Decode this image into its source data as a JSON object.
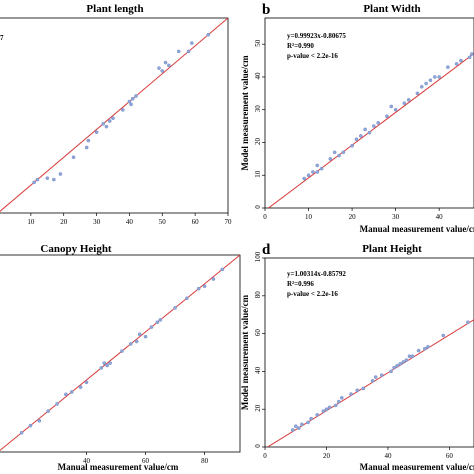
{
  "chart_data": [
    {
      "type": "scatter",
      "panel_letter": "",
      "title": "Plant length",
      "xlabel": "",
      "ylabel": "",
      "xlim": [
        0,
        70
      ],
      "ylim": [
        0,
        70
      ],
      "xticks": [
        "10",
        "20",
        "30",
        "40",
        "50",
        "60",
        "70"
      ],
      "yticks": [],
      "annotations": [
        "7"
      ],
      "fit_line": {
        "slope": 1.0,
        "intercept": 0.0
      },
      "points": [
        {
          "x": 11,
          "y": 11
        },
        {
          "x": 12,
          "y": 12
        },
        {
          "x": 15,
          "y": 12.5
        },
        {
          "x": 17,
          "y": 12
        },
        {
          "x": 19,
          "y": 14
        },
        {
          "x": 23,
          "y": 20
        },
        {
          "x": 27,
          "y": 23.5
        },
        {
          "x": 27.5,
          "y": 26
        },
        {
          "x": 30,
          "y": 29
        },
        {
          "x": 32,
          "y": 32
        },
        {
          "x": 33,
          "y": 31
        },
        {
          "x": 34,
          "y": 33
        },
        {
          "x": 35,
          "y": 34
        },
        {
          "x": 38,
          "y": 37
        },
        {
          "x": 40,
          "y": 40
        },
        {
          "x": 40.5,
          "y": 39
        },
        {
          "x": 41,
          "y": 41
        },
        {
          "x": 42,
          "y": 42
        },
        {
          "x": 49,
          "y": 52
        },
        {
          "x": 50,
          "y": 51
        },
        {
          "x": 51,
          "y": 54
        },
        {
          "x": 52,
          "y": 53
        },
        {
          "x": 55,
          "y": 58
        },
        {
          "x": 58,
          "y": 58
        },
        {
          "x": 59,
          "y": 61
        },
        {
          "x": 64,
          "y": 64
        }
      ],
      "colors": {
        "points": "#8fa6d8",
        "line": "#d83a3a"
      }
    },
    {
      "type": "scatter",
      "panel_letter": "b",
      "title": "Plant Width",
      "xlabel": "Manual measurement value/cm",
      "ylabel": "Model measurement value/cm",
      "xlim": [
        0,
        48
      ],
      "ylim": [
        0,
        58
      ],
      "xticks": [
        "0",
        "10",
        "20",
        "30",
        "40"
      ],
      "yticks": [
        "0",
        "10",
        "20",
        "30",
        "40",
        "50"
      ],
      "annotations": [
        "y=0.99923x-0.80675",
        "R²=0.990",
        "p-value < 2.2e-16"
      ],
      "fit_line": {
        "slope": 0.99923,
        "intercept": -0.80675
      },
      "points": [
        {
          "x": 9,
          "y": 9
        },
        {
          "x": 10,
          "y": 10
        },
        {
          "x": 11,
          "y": 11
        },
        {
          "x": 12,
          "y": 11
        },
        {
          "x": 12,
          "y": 13
        },
        {
          "x": 13,
          "y": 12
        },
        {
          "x": 15,
          "y": 15
        },
        {
          "x": 16,
          "y": 17
        },
        {
          "x": 17,
          "y": 16
        },
        {
          "x": 18,
          "y": 17
        },
        {
          "x": 20,
          "y": 19
        },
        {
          "x": 21,
          "y": 21
        },
        {
          "x": 22,
          "y": 22
        },
        {
          "x": 23,
          "y": 24
        },
        {
          "x": 24,
          "y": 23
        },
        {
          "x": 25,
          "y": 25
        },
        {
          "x": 26,
          "y": 26
        },
        {
          "x": 28,
          "y": 28
        },
        {
          "x": 29,
          "y": 31
        },
        {
          "x": 30,
          "y": 30
        },
        {
          "x": 32,
          "y": 32
        },
        {
          "x": 33,
          "y": 33
        },
        {
          "x": 35,
          "y": 35
        },
        {
          "x": 36,
          "y": 37
        },
        {
          "x": 37,
          "y": 38
        },
        {
          "x": 38,
          "y": 39
        },
        {
          "x": 39,
          "y": 40
        },
        {
          "x": 40,
          "y": 40
        },
        {
          "x": 42,
          "y": 43
        },
        {
          "x": 44,
          "y": 44
        },
        {
          "x": 45,
          "y": 45
        },
        {
          "x": 47,
          "y": 46
        },
        {
          "x": 47.5,
          "y": 47
        }
      ],
      "colors": {
        "points": "#8fa6d8",
        "line": "#d83a3a"
      }
    },
    {
      "type": "scatter",
      "panel_letter": "",
      "title": "Canopy Height",
      "xlabel": "Manual measurement value/cm",
      "ylabel": "",
      "xlim": [
        10,
        92
      ],
      "ylim": [
        10,
        92
      ],
      "xticks": [
        "40",
        "60",
        "80"
      ],
      "yticks": [],
      "annotations": [],
      "fit_line": {
        "slope": 1.0,
        "intercept": 0.0
      },
      "points": [
        {
          "x": 18,
          "y": 18
        },
        {
          "x": 21,
          "y": 21
        },
        {
          "x": 24,
          "y": 23
        },
        {
          "x": 27,
          "y": 27
        },
        {
          "x": 30,
          "y": 30
        },
        {
          "x": 33,
          "y": 34
        },
        {
          "x": 35,
          "y": 35
        },
        {
          "x": 38,
          "y": 37
        },
        {
          "x": 40,
          "y": 39
        },
        {
          "x": 45,
          "y": 45
        },
        {
          "x": 46,
          "y": 47
        },
        {
          "x": 47,
          "y": 46
        },
        {
          "x": 48,
          "y": 47
        },
        {
          "x": 52,
          "y": 52
        },
        {
          "x": 55,
          "y": 55
        },
        {
          "x": 57,
          "y": 56
        },
        {
          "x": 58,
          "y": 59
        },
        {
          "x": 60,
          "y": 58
        },
        {
          "x": 62,
          "y": 62
        },
        {
          "x": 64,
          "y": 64
        },
        {
          "x": 65,
          "y": 65
        },
        {
          "x": 70,
          "y": 70
        },
        {
          "x": 74,
          "y": 74
        },
        {
          "x": 78,
          "y": 78
        },
        {
          "x": 80,
          "y": 79
        },
        {
          "x": 83,
          "y": 82
        },
        {
          "x": 86,
          "y": 86
        }
      ],
      "colors": {
        "points": "#8fa6d8",
        "line": "#d83a3a"
      }
    },
    {
      "type": "scatter",
      "panel_letter": "d",
      "title": "Plant Height",
      "xlabel": "Manual measurement value/cm",
      "ylabel": "Model measurement value/cm",
      "xlim": [
        0,
        68
      ],
      "ylim": [
        0,
        100
      ],
      "xticks": [
        "0",
        "20",
        "40",
        "60"
      ],
      "yticks": [
        "0",
        "20",
        "40",
        "60",
        "80",
        "100"
      ],
      "annotations": [
        "y=1.00314x-0.85792",
        "R²=0.996",
        "p-value < 2.2e-16"
      ],
      "fit_line": {
        "slope": 1.00314,
        "intercept": -0.85792
      },
      "points": [
        {
          "x": 9,
          "y": 9
        },
        {
          "x": 10,
          "y": 11
        },
        {
          "x": 11,
          "y": 10
        },
        {
          "x": 12,
          "y": 12
        },
        {
          "x": 14,
          "y": 13
        },
        {
          "x": 15,
          "y": 15
        },
        {
          "x": 17,
          "y": 17
        },
        {
          "x": 19,
          "y": 19
        },
        {
          "x": 20,
          "y": 20
        },
        {
          "x": 21,
          "y": 21
        },
        {
          "x": 23,
          "y": 22
        },
        {
          "x": 24,
          "y": 24
        },
        {
          "x": 25,
          "y": 26
        },
        {
          "x": 28,
          "y": 28
        },
        {
          "x": 30,
          "y": 30
        },
        {
          "x": 32,
          "y": 31
        },
        {
          "x": 35,
          "y": 35
        },
        {
          "x": 36,
          "y": 37
        },
        {
          "x": 38,
          "y": 38
        },
        {
          "x": 41,
          "y": 40
        },
        {
          "x": 42,
          "y": 42
        },
        {
          "x": 43,
          "y": 43
        },
        {
          "x": 44,
          "y": 44
        },
        {
          "x": 45,
          "y": 45
        },
        {
          "x": 46,
          "y": 46
        },
        {
          "x": 47,
          "y": 48
        },
        {
          "x": 48,
          "y": 48
        },
        {
          "x": 50,
          "y": 51
        },
        {
          "x": 52,
          "y": 52
        },
        {
          "x": 53,
          "y": 53
        },
        {
          "x": 58,
          "y": 59
        },
        {
          "x": 66,
          "y": 66
        }
      ],
      "colors": {
        "points": "#8fa6d8",
        "line": "#d83a3a"
      }
    }
  ]
}
